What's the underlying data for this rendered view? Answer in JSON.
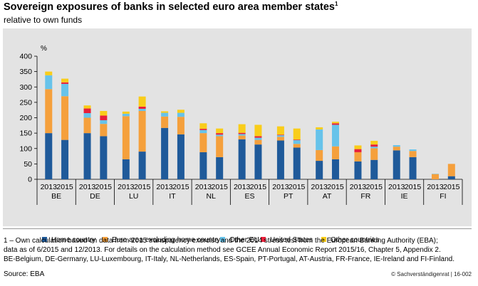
{
  "header": {
    "title": "Sovereign exposures of banks in selected euro area member states",
    "title_footnote": "1",
    "subtitle": "relative to own funds"
  },
  "colors": {
    "home": "#1f5a9a",
    "euro_area": "#f5a03c",
    "other_eu": "#67c3ea",
    "united_states": "#e8203a",
    "other_countries": "#f9cd1a"
  },
  "chart_data": {
    "type": "bar",
    "stacked": true,
    "ylabel": "%",
    "ylim": [
      0,
      400
    ],
    "yticks": [
      0,
      50,
      100,
      150,
      200,
      250,
      300,
      350,
      400
    ],
    "grid": false,
    "groups": [
      {
        "country": "BE",
        "years": [
          "2013",
          "2015"
        ]
      },
      {
        "country": "DE",
        "years": [
          "2013",
          "2015"
        ]
      },
      {
        "country": "LU",
        "years": [
          "2013",
          "2015"
        ]
      },
      {
        "country": "IT",
        "years": [
          "2013",
          "2015"
        ]
      },
      {
        "country": "NL",
        "years": [
          "2013",
          "2015"
        ]
      },
      {
        "country": "ES",
        "years": [
          "2013",
          "2015"
        ]
      },
      {
        "country": "PT",
        "years": [
          "2013",
          "2015"
        ]
      },
      {
        "country": "AT",
        "years": [
          "2013",
          "2015"
        ]
      },
      {
        "country": "FR",
        "years": [
          "2013",
          "2015"
        ]
      },
      {
        "country": "IE",
        "years": [
          "2013",
          "2015"
        ]
      },
      {
        "country": "FI",
        "years": [
          "2013",
          "2015"
        ]
      }
    ],
    "series": [
      {
        "name": "Home country",
        "color_key": "home",
        "values": [
          150,
          128,
          150,
          140,
          65,
          90,
          167,
          146,
          88,
          72,
          130,
          113,
          126,
          103,
          60,
          65,
          58,
          63,
          94,
          72,
          0,
          10
        ]
      },
      {
        "name": "Euro area excluding home country",
        "color_key": "euro_area",
        "values": [
          143,
          142,
          50,
          40,
          140,
          132,
          37,
          57,
          62,
          68,
          12,
          15,
          12,
          12,
          35,
          42,
          30,
          38,
          12,
          20,
          17,
          40
        ]
      },
      {
        "name": "Other EU",
        "color_key": "other_eu",
        "values": [
          45,
          40,
          15,
          12,
          8,
          7,
          12,
          13,
          10,
          5,
          5,
          7,
          5,
          12,
          67,
          70,
          0,
          5,
          5,
          5,
          1,
          0
        ]
      },
      {
        "name": "United States",
        "color_key": "united_states",
        "values": [
          0,
          5,
          15,
          15,
          0,
          7,
          0,
          0,
          4,
          5,
          4,
          5,
          2,
          2,
          0,
          5,
          10,
          7,
          0,
          0,
          0,
          0
        ]
      },
      {
        "name": "Other countries",
        "color_key": "other_countries",
        "values": [
          12,
          12,
          10,
          15,
          7,
          33,
          5,
          10,
          18,
          15,
          28,
          37,
          27,
          36,
          7,
          5,
          12,
          12,
          0,
          0,
          0,
          0
        ]
      }
    ]
  },
  "legend": [
    {
      "label": "Home country",
      "color_key": "home"
    },
    {
      "label": "Euro area excluding home country",
      "color_key": "euro_area"
    },
    {
      "label": "Other EU",
      "color_key": "other_eu"
    },
    {
      "label": "United States",
      "color_key": "united_states"
    },
    {
      "label": "Other countries",
      "color_key": "other_countries"
    }
  ],
  "footnote": {
    "lines": [
      "1 – Own calculation based on data from 2015 transparency exercise and the 2014 stress test from the European Banking Authority (EBA);",
      "data as of 6/2015 and 12/2013. For details on the calculation method see GCEE Annual Economic Report 2015/16, Chapter 5, Appendix 2.",
      "BE-Belgium, DE-Germany, LU-Luxembourg, IT-Italy, NL-Netherlands, ES-Spain, PT-Portugal, AT-Austria, FR-France, IE-Ireland and FI-Finland."
    ],
    "source": "Source: EBA",
    "copyright": "© Sachverständigenrat | 16-002"
  }
}
